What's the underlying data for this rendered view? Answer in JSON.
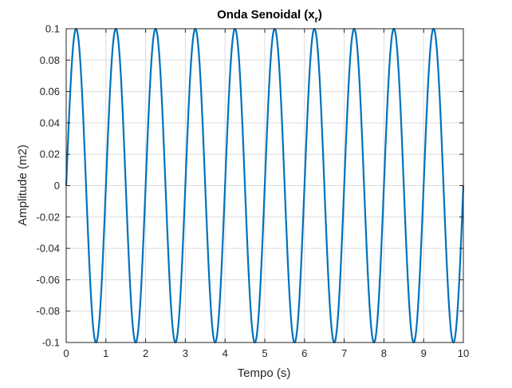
{
  "chart_data": {
    "type": "line",
    "title": "Onda Senoidal (x",
    "title_subscript": "r",
    "title_suffix": ")",
    "xlabel": "Tempo (s)",
    "ylabel": "Amplitude (m2)",
    "xlim": [
      0,
      10
    ],
    "ylim": [
      -0.1,
      0.1
    ],
    "grid": true,
    "x_ticks": [
      0,
      1,
      2,
      3,
      4,
      5,
      6,
      7,
      8,
      9,
      10
    ],
    "x_tick_labels": [
      "0",
      "1",
      "2",
      "3",
      "4",
      "5",
      "6",
      "7",
      "8",
      "9",
      "10"
    ],
    "y_ticks": [
      0.1,
      0.08,
      0.06,
      0.04,
      0.02,
      0,
      -0.02,
      -0.04,
      -0.06,
      -0.08,
      -0.1
    ],
    "y_tick_labels": [
      "0.1",
      "0.08",
      "0.06",
      "0.04",
      "0.02",
      "0",
      "-0.02",
      "-0.04",
      "-0.06",
      "-0.08",
      "-0.1"
    ],
    "series": [
      {
        "function": "sine",
        "amplitude": 0.1,
        "frequency_hz": 1,
        "phase": 0,
        "color": "#0072BD"
      }
    ]
  },
  "colors": {
    "line": "#0072BD",
    "axes": "#262626",
    "grid": "#dcdcdc",
    "background": "#ffffff"
  }
}
